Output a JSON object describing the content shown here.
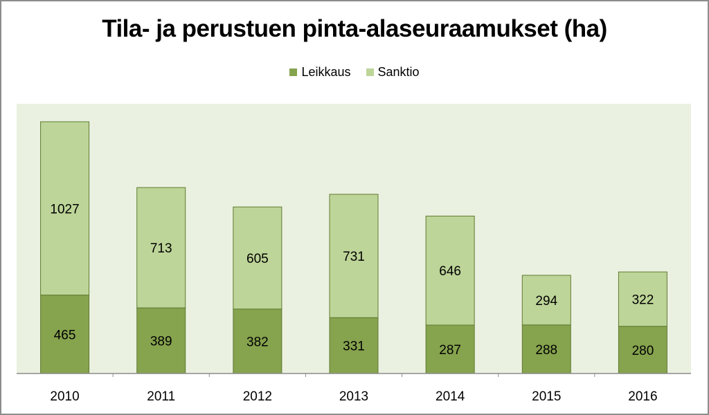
{
  "chart_data": {
    "type": "bar",
    "stacked": true,
    "title": "Tila- ja perustuen pinta-alaseuraamukset (ha)",
    "categories": [
      "2010",
      "2011",
      "2012",
      "2013",
      "2014",
      "2015",
      "2016"
    ],
    "series": [
      {
        "name": "Leikkaus",
        "color": "#86a34e",
        "values": [
          465,
          389,
          382,
          331,
          287,
          288,
          280
        ]
      },
      {
        "name": "Sanktio",
        "color": "#bdd598",
        "values": [
          1027,
          713,
          605,
          731,
          646,
          294,
          322
        ]
      }
    ],
    "ylim": [
      0,
      1600
    ],
    "grid": false,
    "legend_position": "top",
    "plot_background": "#ebf1e0",
    "bar_border_color": "#5f7a32"
  }
}
